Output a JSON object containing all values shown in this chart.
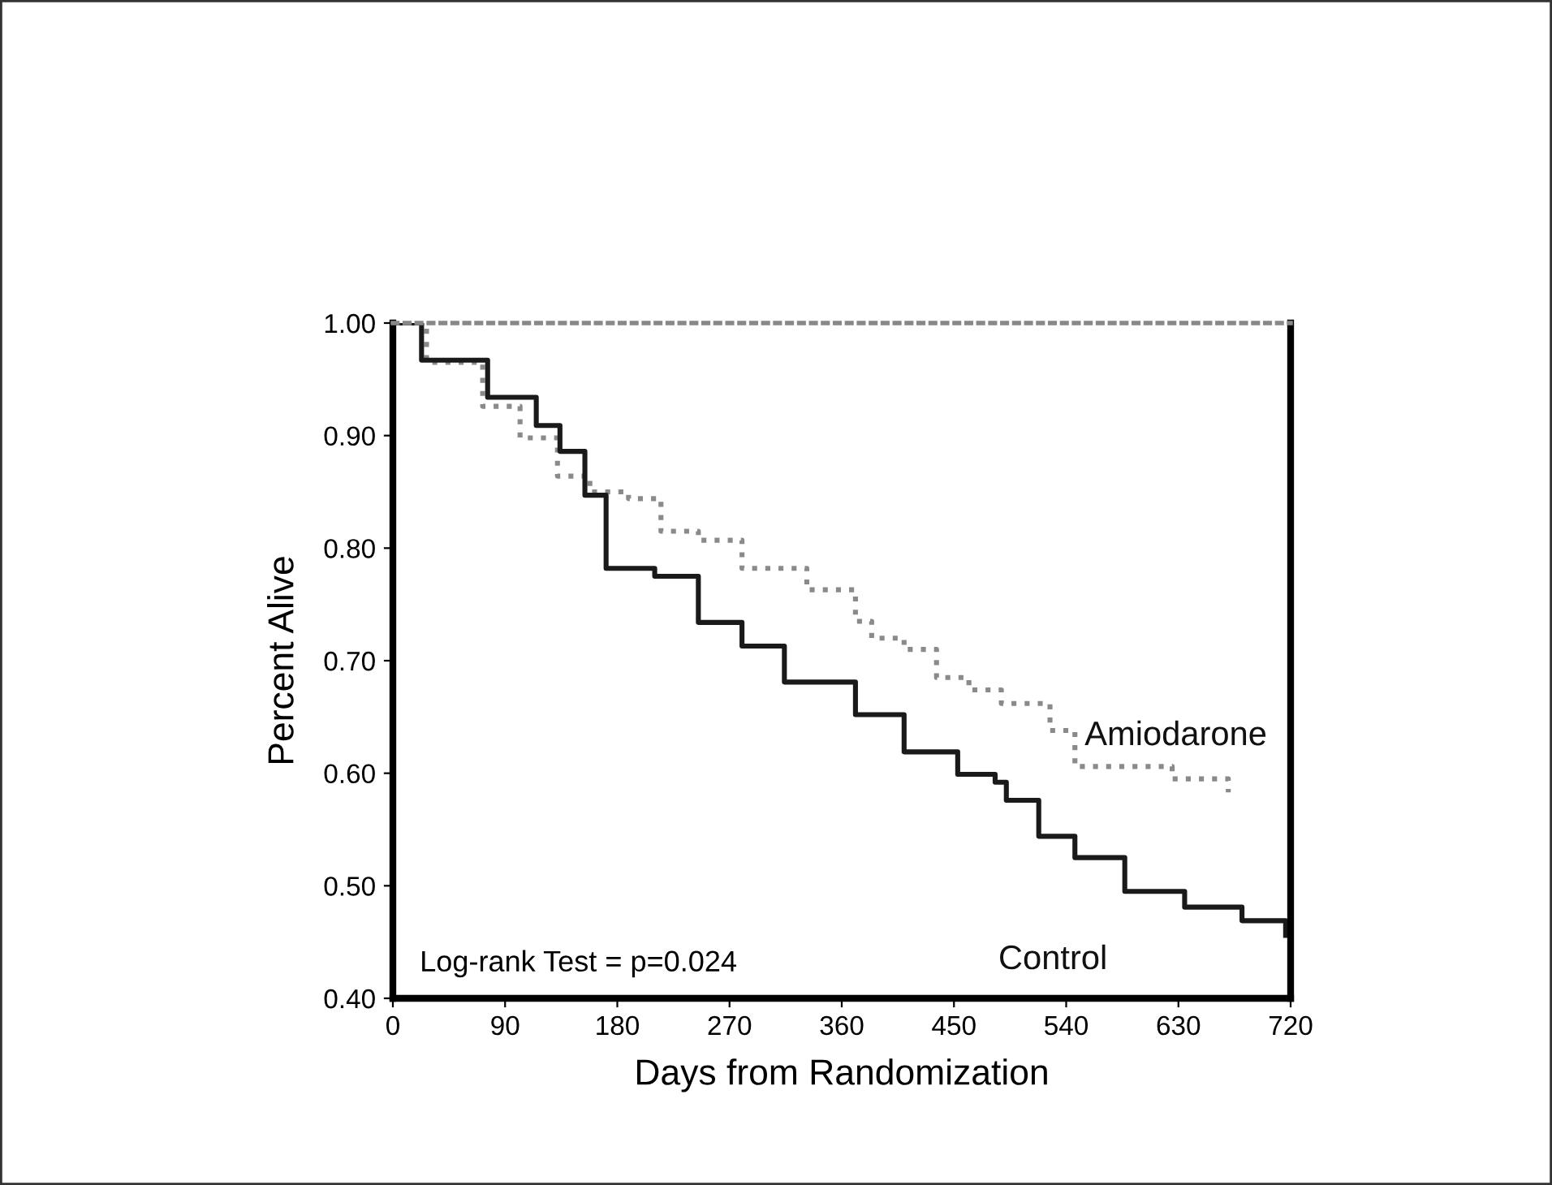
{
  "chart_data": {
    "type": "step",
    "xlabel": "Days from Randomization",
    "ylabel": "Percent Alive",
    "xlim": [
      0,
      720
    ],
    "xticks": [
      0,
      90,
      180,
      270,
      360,
      450,
      540,
      630,
      720
    ],
    "ylim": [
      0.4,
      1.0
    ],
    "yticks": [
      {
        "value": 0.4,
        "label": "0.40"
      },
      {
        "value": 0.5,
        "label": "0.50"
      },
      {
        "value": 0.6,
        "label": "0.60"
      },
      {
        "value": 0.7,
        "label": "0.70"
      },
      {
        "value": 0.8,
        "label": "0.80"
      },
      {
        "value": 0.9,
        "label": "0.90"
      },
      {
        "value": 1.0,
        "label": "1.00"
      }
    ],
    "grid": false,
    "legend": false,
    "annotations": [
      "Log-rank Test = p=0.024"
    ],
    "series": [
      {
        "name": "Amiodarone",
        "color": "#8a8a8a",
        "line_style": "dotted",
        "x": [
          0,
          27,
          72,
          102,
          132,
          158,
          189,
          215,
          245,
          280,
          323,
          332,
          371,
          384,
          410,
          436,
          462,
          488,
          522,
          527,
          547,
          622,
          625,
          668,
          670
        ],
        "values": [
          1.0,
          0.965,
          0.926,
          0.898,
          0.864,
          0.85,
          0.844,
          0.815,
          0.807,
          0.782,
          0.782,
          0.763,
          0.735,
          0.72,
          0.71,
          0.685,
          0.674,
          0.662,
          0.662,
          0.638,
          0.606,
          0.606,
          0.595,
          0.595,
          0.583
        ]
      },
      {
        "name": "Control",
        "color": "#1a1a1a",
        "line_style": "solid",
        "x": [
          0,
          23,
          76,
          115,
          134,
          154,
          171,
          210,
          245,
          280,
          314,
          353,
          371,
          410,
          453,
          483,
          492,
          518,
          547,
          583,
          587,
          632,
          635,
          677,
          681,
          714,
          716
        ],
        "values": [
          1.0,
          0.967,
          0.934,
          0.909,
          0.886,
          0.847,
          0.782,
          0.775,
          0.734,
          0.713,
          0.681,
          0.681,
          0.652,
          0.619,
          0.599,
          0.592,
          0.576,
          0.544,
          0.525,
          0.525,
          0.495,
          0.495,
          0.481,
          0.481,
          0.469,
          0.469,
          0.456
        ]
      }
    ]
  }
}
